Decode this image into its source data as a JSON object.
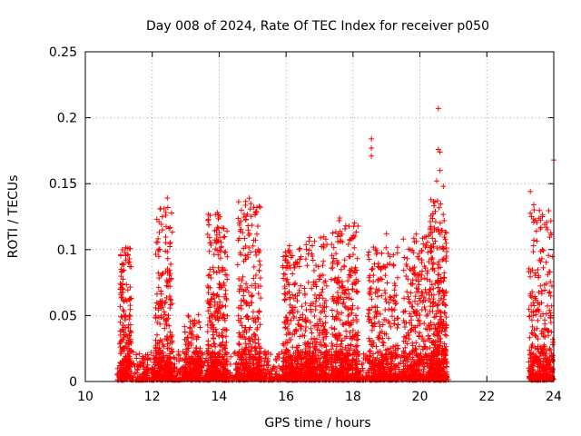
{
  "chart_data": {
    "type": "scatter",
    "title": "Day 008 of 2024, Rate Of TEC Index for receiver p050",
    "xlabel": "GPS time / hours",
    "ylabel": "ROTI / TECUs",
    "xlim": [
      10,
      24
    ],
    "ylim": [
      0,
      0.25
    ],
    "grid": true,
    "marker": "+",
    "color": "#ff0000",
    "x_ticks": [
      10,
      12,
      14,
      16,
      18,
      20,
      22,
      24
    ],
    "x_tick_labels": [
      "10",
      "12",
      "14",
      "16",
      "18",
      "20",
      "22",
      "24"
    ],
    "y_ticks": [
      0,
      0.05,
      0.1,
      0.15,
      0.2,
      0.25
    ],
    "y_tick_labels": [
      "0",
      "0.05",
      "0.1",
      "0.15",
      "0.2",
      "0.25"
    ],
    "data_segments": [
      {
        "start": 10.95,
        "end": 20.85
      },
      {
        "start": 23.25,
        "end": 24.0
      }
    ],
    "notable_points": [
      {
        "x": 20.55,
        "y": 0.207
      },
      {
        "x": 18.55,
        "y": 0.184
      },
      {
        "x": 18.55,
        "y": 0.177
      },
      {
        "x": 18.55,
        "y": 0.171
      },
      {
        "x": 20.55,
        "y": 0.176
      },
      {
        "x": 20.6,
        "y": 0.174
      },
      {
        "x": 24.0,
        "y": 0.168
      },
      {
        "x": 20.6,
        "y": 0.16
      },
      {
        "x": 20.5,
        "y": 0.152
      },
      {
        "x": 20.7,
        "y": 0.148
      },
      {
        "x": 23.3,
        "y": 0.144
      },
      {
        "x": 12.45,
        "y": 0.139
      },
      {
        "x": 14.9,
        "y": 0.139
      },
      {
        "x": 23.4,
        "y": 0.134
      },
      {
        "x": 12.25,
        "y": 0.131
      },
      {
        "x": 13.95,
        "y": 0.128
      },
      {
        "x": 12.4,
        "y": 0.126
      },
      {
        "x": 17.6,
        "y": 0.124
      },
      {
        "x": 19.0,
        "y": 0.112
      },
      {
        "x": 11.25,
        "y": 0.101
      },
      {
        "x": 16.1,
        "y": 0.103
      }
    ],
    "clusters": [
      {
        "center": 11.2,
        "width": 0.35,
        "peak": 0.1,
        "n": 220
      },
      {
        "center": 12.35,
        "width": 0.5,
        "peak": 0.13,
        "n": 260
      },
      {
        "center": 13.2,
        "width": 0.5,
        "peak": 0.05,
        "n": 160
      },
      {
        "center": 13.95,
        "width": 0.6,
        "peak": 0.125,
        "n": 320
      },
      {
        "center": 14.9,
        "width": 0.7,
        "peak": 0.135,
        "n": 320
      },
      {
        "center": 16.2,
        "width": 0.6,
        "peak": 0.1,
        "n": 260
      },
      {
        "center": 16.9,
        "width": 0.7,
        "peak": 0.11,
        "n": 340
      },
      {
        "center": 17.75,
        "width": 0.8,
        "peak": 0.12,
        "n": 380
      },
      {
        "center": 18.9,
        "width": 0.9,
        "peak": 0.1,
        "n": 300
      },
      {
        "center": 19.9,
        "width": 0.8,
        "peak": 0.11,
        "n": 320
      },
      {
        "center": 20.55,
        "width": 0.5,
        "peak": 0.14,
        "n": 360
      },
      {
        "center": 23.6,
        "width": 0.75,
        "peak": 0.13,
        "n": 300
      }
    ]
  }
}
